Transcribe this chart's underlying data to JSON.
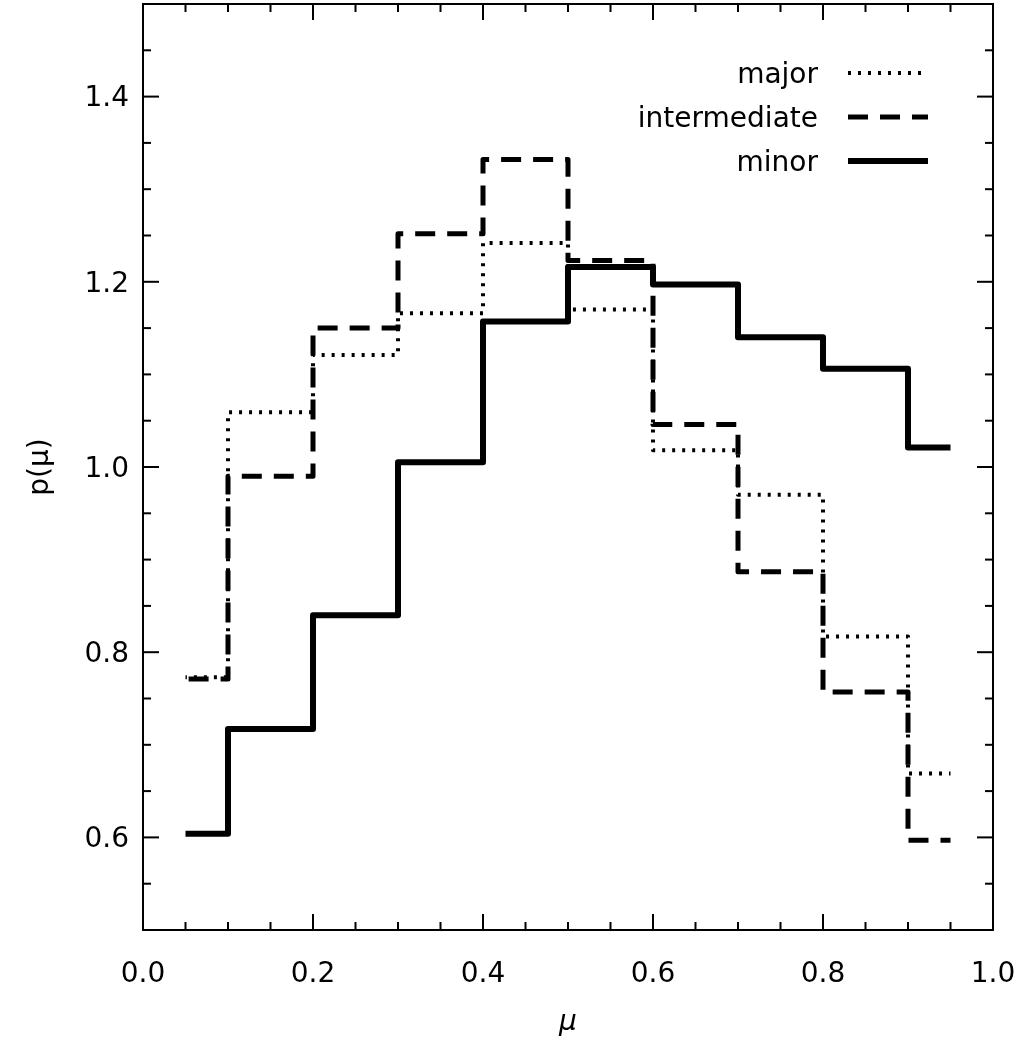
{
  "chart_data": {
    "type": "step",
    "xlabel": "μ",
    "ylabel": "p(μ)",
    "x": [
      0.05,
      0.1,
      0.2,
      0.3,
      0.4,
      0.5,
      0.6,
      0.7,
      0.8,
      0.9,
      0.95
    ],
    "series": [
      {
        "name": "major",
        "color": "#000000",
        "line_style": "dotted",
        "values": [
          0.773,
          1.059,
          1.121,
          1.166,
          1.242,
          1.17,
          1.018,
          0.97,
          0.817,
          0.669,
          0.669
        ]
      },
      {
        "name": "intermediate",
        "color": "#000000",
        "line_style": "dashed",
        "values": [
          0.771,
          0.99,
          1.15,
          1.252,
          1.332,
          1.223,
          1.046,
          0.887,
          0.757,
          0.597,
          0.597
        ]
      },
      {
        "name": "minor",
        "color": "#000000",
        "line_style": "solid",
        "values": [
          0.604,
          0.717,
          0.84,
          1.005,
          1.157,
          1.216,
          1.197,
          1.14,
          1.106,
          1.021,
          1.021
        ]
      }
    ],
    "xlim": [
      0,
      1
    ],
    "xticks": [
      {
        "value": 0,
        "label": "0.0"
      },
      {
        "value": 0.05,
        "label": null
      },
      {
        "value": 0.1,
        "label": null
      },
      {
        "value": 0.15,
        "label": null
      },
      {
        "value": 0.2,
        "label": "0.2"
      },
      {
        "value": 0.25,
        "label": null
      },
      {
        "value": 0.3,
        "label": null
      },
      {
        "value": 0.35,
        "label": null
      },
      {
        "value": 0.4,
        "label": "0.4"
      },
      {
        "value": 0.45,
        "label": null
      },
      {
        "value": 0.5,
        "label": null
      },
      {
        "value": 0.55,
        "label": null
      },
      {
        "value": 0.6,
        "label": "0.6"
      },
      {
        "value": 0.65,
        "label": null
      },
      {
        "value": 0.7,
        "label": null
      },
      {
        "value": 0.75,
        "label": null
      },
      {
        "value": 0.8,
        "label": "0.8"
      },
      {
        "value": 0.85,
        "label": null
      },
      {
        "value": 0.9,
        "label": null
      },
      {
        "value": 0.95,
        "label": null
      },
      {
        "value": 1,
        "label": "1.0"
      }
    ],
    "ylim": [
      0.5,
      1.5
    ],
    "yticks": [
      {
        "value": 0.55,
        "label": null
      },
      {
        "value": 0.6,
        "label": "0.6"
      },
      {
        "value": 0.65,
        "label": null
      },
      {
        "value": 0.7,
        "label": null
      },
      {
        "value": 0.75,
        "label": null
      },
      {
        "value": 0.8,
        "label": "0.8"
      },
      {
        "value": 0.85,
        "label": null
      },
      {
        "value": 0.9,
        "label": null
      },
      {
        "value": 0.95,
        "label": null
      },
      {
        "value": 1.0,
        "label": "1.0"
      },
      {
        "value": 1.05,
        "label": null
      },
      {
        "value": 1.1,
        "label": null
      },
      {
        "value": 1.15,
        "label": null
      },
      {
        "value": 1.2,
        "label": "1.2"
      },
      {
        "value": 1.25,
        "label": null
      },
      {
        "value": 1.3,
        "label": null
      },
      {
        "value": 1.35,
        "label": null
      },
      {
        "value": 1.4,
        "label": "1.4"
      },
      {
        "value": 1.45,
        "label": null
      }
    ],
    "legend": "top right"
  }
}
